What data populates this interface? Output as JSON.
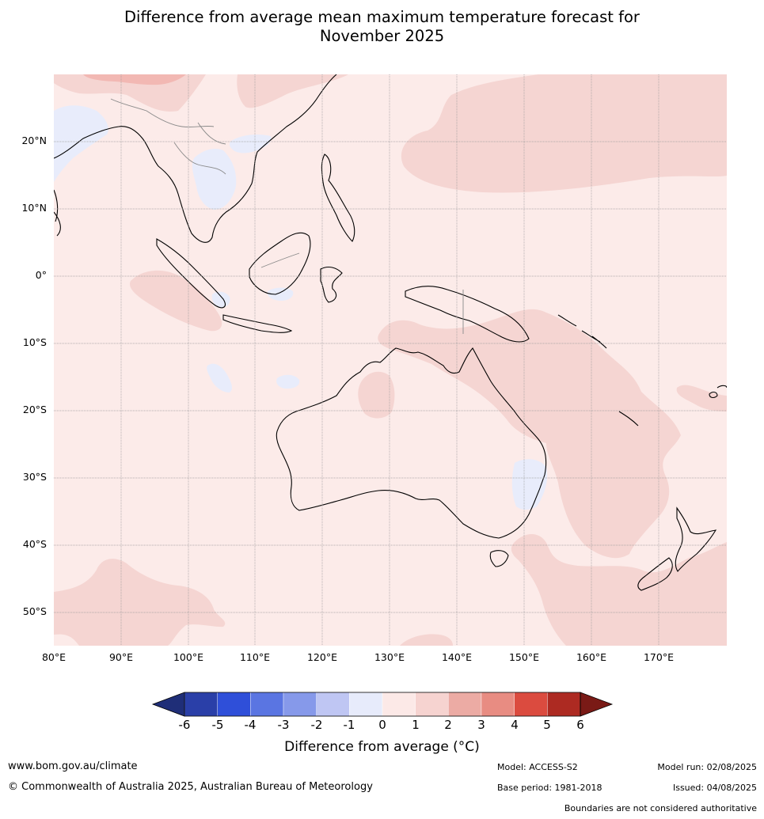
{
  "title_line1": "Difference from average mean maximum temperature forecast for",
  "title_line2": "November 2025",
  "map": {
    "latitude_labels": [
      "20°N",
      "10°N",
      "0°",
      "10°S",
      "20°S",
      "30°S",
      "40°S",
      "50°S"
    ],
    "longitude_labels": [
      "80°E",
      "90°E",
      "100°E",
      "110°E",
      "120°E",
      "130°E",
      "140°E",
      "150°E",
      "160°E",
      "170°E"
    ]
  },
  "colorbar": {
    "ticks": [
      "-6",
      "-5",
      "-4",
      "-3",
      "-2",
      "-1",
      "0",
      "1",
      "2",
      "3",
      "4",
      "5",
      "6"
    ],
    "colors": [
      "#2a3fa8",
      "#2f4fd9",
      "#5a75e2",
      "#8699ea",
      "#bfc6f3",
      "#e7ebfb",
      "#fce9e7",
      "#f6d3d0",
      "#ecaba4",
      "#e88c82",
      "#db4b3f",
      "#ad2a22"
    ],
    "low_extend_color": "#1f2e78",
    "high_extend_color": "#7a1a16",
    "label": "Difference from average (°C)"
  },
  "anomaly_colors": {
    "weak_warm": "#fcebe9",
    "moderate_warm": "#f5d5d2",
    "strong_warm": "#f2b8b3",
    "weak_cool": "#e8ecfb"
  },
  "footer": {
    "website": "www.bom.gov.au/climate",
    "copyright": "© Commonwealth of Australia 2025, Australian Bureau of Meteorology",
    "model": "Model: ACCESS-S2",
    "base_period": "Base period: 1981-2018",
    "model_run": "Model run: 02/08/2025",
    "issued": "Issued: 04/08/2025",
    "disclaimer": "Boundaries are not considered authoritative"
  }
}
